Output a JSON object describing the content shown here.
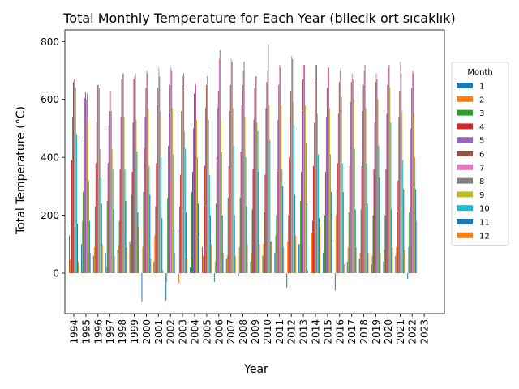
{
  "chart_data": {
    "type": "bar",
    "title": "Total Monthly Temperature for Each Year (bilecik ort sıcaklık)",
    "xlabel": "Year",
    "ylabel": "Total Temperature (°C)",
    "ylim": [
      -140,
      840
    ],
    "yticks": [
      0,
      200,
      400,
      600,
      800
    ],
    "grid": false,
    "legend_title": "Month",
    "legend_position": "right",
    "categories": [
      "1994",
      "1995",
      "1996",
      "1997",
      "1998",
      "1999",
      "2000",
      "2001",
      "2002",
      "2003",
      "2004",
      "2005",
      "2006",
      "2007",
      "2008",
      "2009",
      "2010",
      "2011",
      "2012",
      "2013",
      "2014",
      "2015",
      "2016",
      "2017",
      "2018",
      "2019",
      "2020",
      "2021",
      "2022",
      "2023"
    ],
    "series": [
      {
        "name": "1",
        "color": "#1f77b4",
        "values": [
          130,
          100,
          60,
          70,
          80,
          110,
          -100,
          40,
          -95,
          150,
          20,
          90,
          -30,
          50,
          -10,
          40,
          60,
          70,
          -50,
          100,
          20,
          70,
          -60,
          40,
          50,
          30,
          40,
          60,
          -20,
          0
        ]
      },
      {
        "name": "2",
        "color": "#ff7f0e",
        "values": [
          45,
          180,
          90,
          20,
          95,
          100,
          90,
          130,
          -30,
          -35,
          50,
          60,
          40,
          60,
          90,
          70,
          100,
          130,
          110,
          100,
          140,
          80,
          200,
          90,
          70,
          60,
          80,
          90,
          90,
          0
        ]
      },
      {
        "name": "3",
        "color": "#2ca02c",
        "values": [
          170,
          280,
          230,
          250,
          180,
          270,
          280,
          230,
          260,
          230,
          280,
          230,
          240,
          260,
          260,
          220,
          210,
          200,
          200,
          250,
          180,
          200,
          290,
          210,
          220,
          200,
          200,
          210,
          210,
          0
        ]
      },
      {
        "name": "4",
        "color": "#d62728",
        "values": [
          390,
          460,
          380,
          380,
          360,
          350,
          430,
          380,
          440,
          340,
          350,
          370,
          400,
          370,
          420,
          360,
          340,
          350,
          400,
          350,
          370,
          350,
          380,
          370,
          370,
          360,
          360,
          320,
          310,
          0
        ]
      },
      {
        "name": "5",
        "color": "#9467bd",
        "values": [
          540,
          605,
          520,
          510,
          540,
          520,
          540,
          580,
          550,
          560,
          500,
          570,
          570,
          560,
          580,
          530,
          570,
          530,
          540,
          560,
          520,
          540,
          550,
          590,
          560,
          520,
          550,
          540,
          500,
          0
        ]
      },
      {
        "name": "6",
        "color": "#8c564b",
        "values": [
          660,
          625,
          650,
          560,
          670,
          670,
          640,
          640,
          650,
          650,
          620,
          650,
          630,
          650,
          650,
          640,
          660,
          650,
          630,
          670,
          660,
          640,
          660,
          660,
          650,
          660,
          650,
          630,
          640,
          0
        ]
      },
      {
        "name": "7",
        "color": "#e377c2",
        "values": [
          670,
          600,
          650,
          630,
          690,
          680,
          700,
          710,
          710,
          680,
          660,
          680,
          740,
          740,
          700,
          680,
          700,
          720,
          750,
          720,
          720,
          710,
          700,
          690,
          700,
          690,
          710,
          730,
          700,
          0
        ]
      },
      {
        "name": "8",
        "color": "#7f7f7f",
        "values": [
          655,
          620,
          640,
          560,
          690,
          690,
          690,
          680,
          700,
          690,
          650,
          700,
          770,
          730,
          730,
          680,
          790,
          710,
          740,
          720,
          720,
          710,
          710,
          670,
          720,
          670,
          720,
          690,
          690,
          0
        ]
      },
      {
        "name": "9",
        "color": "#bcbd22",
        "values": [
          640,
          520,
          430,
          430,
          540,
          530,
          570,
          560,
          570,
          490,
          530,
          530,
          530,
          570,
          540,
          520,
          580,
          580,
          590,
          580,
          550,
          570,
          610,
          600,
          570,
          600,
          640,
          560,
          550,
          0
        ]
      },
      {
        "name": "10",
        "color": "#17becf",
        "values": [
          480,
          320,
          330,
          360,
          360,
          420,
          370,
          400,
          410,
          430,
          400,
          340,
          420,
          440,
          400,
          490,
          460,
          360,
          510,
          450,
          410,
          410,
          380,
          430,
          380,
          440,
          520,
          390,
          400,
          0
        ]
      },
      {
        "name": "11",
        "color": "#1f77b4",
        "values": [
          170,
          180,
          240,
          220,
          250,
          210,
          270,
          190,
          150,
          210,
          240,
          200,
          200,
          200,
          230,
          350,
          110,
          300,
          270,
          240,
          190,
          280,
          280,
          220,
          240,
          330,
          220,
          290,
          290,
          0
        ]
      },
      {
        "name": "12",
        "color": "#ff7f0e",
        "values": [
          40,
          70,
          100,
          60,
          90,
          160,
          50,
          10,
          70,
          50,
          120,
          100,
          70,
          60,
          100,
          100,
          110,
          90,
          130,
          10,
          170,
          100,
          30,
          90,
          70,
          70,
          90,
          80,
          180,
          0
        ]
      }
    ]
  }
}
